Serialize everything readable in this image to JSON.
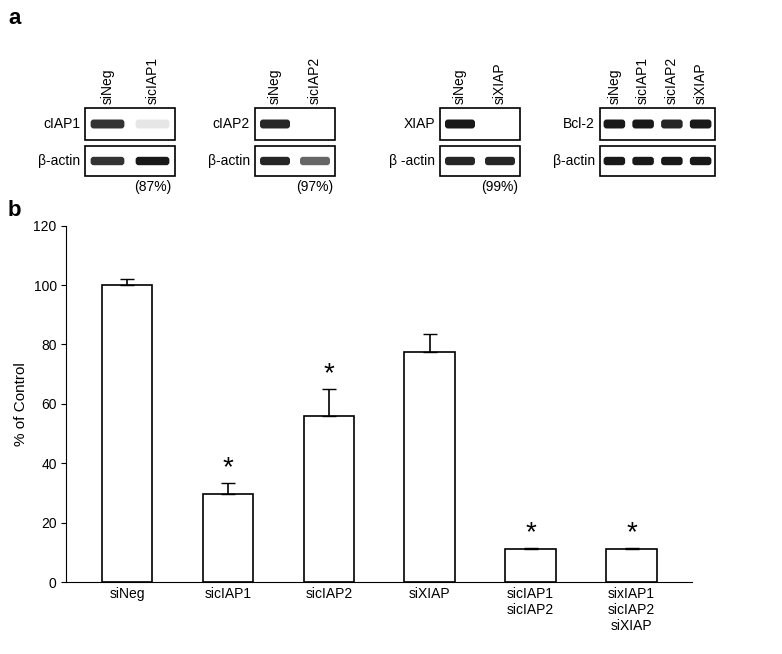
{
  "chart_data": {
    "type": "bar",
    "categories": [
      "siNeg",
      "sicIAP1",
      "sicIAP2",
      "siXIAP",
      "sicIAP1\nsicIAP2",
      "sixIAP1\nsicIAP2\nsiXIAP"
    ],
    "values": [
      100,
      29.5,
      56,
      77.5,
      11,
      11
    ],
    "errors": [
      2,
      4,
      9,
      6,
      0.6,
      0.6
    ],
    "significant": [
      false,
      true,
      true,
      false,
      true,
      true
    ],
    "significance_label": "*",
    "y_label": "% of Control",
    "color": "#ffffff",
    "ylim": [
      0,
      120
    ],
    "yticks": [
      0,
      20,
      40,
      60,
      80,
      100,
      120
    ],
    "grid": false
  },
  "panel_labels": [
    "a",
    "b"
  ],
  "blots": [
    {
      "lanes": [
        "siNeg",
        "sicIAP1"
      ],
      "rows": [
        {
          "label": "cIAP1",
          "intensity": [
            0.8,
            0.1
          ]
        },
        {
          "label": "β-actin",
          "intensity": [
            0.8,
            0.9
          ]
        }
      ],
      "knockdown": "(87%)"
    },
    {
      "lanes": [
        "siNeg",
        "sicIAP2"
      ],
      "rows": [
        {
          "label": "cIAP2",
          "intensity": [
            0.85,
            0.0
          ]
        },
        {
          "label": "β-actin",
          "intensity": [
            0.85,
            0.6
          ]
        }
      ],
      "knockdown": "(97%)"
    },
    {
      "lanes": [
        "siNeg",
        "siXIAP"
      ],
      "rows": [
        {
          "label": "XIAP",
          "intensity": [
            0.9,
            0.0
          ]
        },
        {
          "label": "β -actin",
          "intensity": [
            0.85,
            0.85
          ]
        }
      ],
      "knockdown": "(99%)"
    },
    {
      "lanes": [
        "siNeg",
        "sicIAP1",
        "sicIAP2",
        "siXIAP"
      ],
      "rows": [
        {
          "label": "Bcl-2",
          "intensity": [
            0.9,
            0.9,
            0.85,
            0.9
          ]
        },
        {
          "label": "β-actin",
          "intensity": [
            0.9,
            0.9,
            0.9,
            0.9
          ]
        }
      ]
    }
  ]
}
